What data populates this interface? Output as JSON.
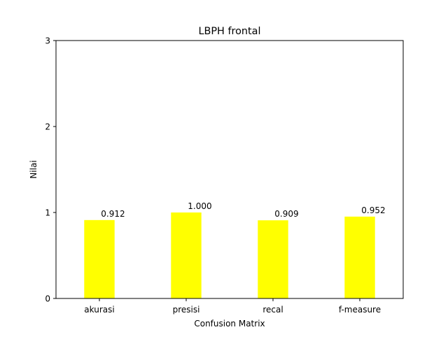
{
  "chart_data": {
    "type": "bar",
    "title": "LBPH frontal",
    "xlabel": "Confusion Matrix",
    "ylabel": "Nilai",
    "categories": [
      "akurasi",
      "presisi",
      "recal",
      "f-measure"
    ],
    "values": [
      0.912,
      1.0,
      0.909,
      0.952
    ],
    "data_labels": [
      "0.912",
      "1.000",
      "0.909",
      "0.952"
    ],
    "ylim": [
      0,
      3
    ],
    "yticks": [
      0,
      1,
      2,
      3
    ],
    "grid": false,
    "legend": "none",
    "bar_color": "#ffff00"
  }
}
